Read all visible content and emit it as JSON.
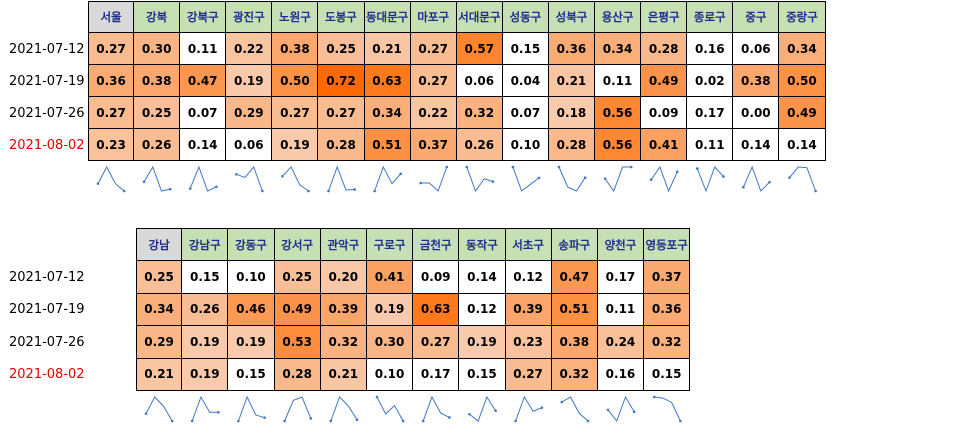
{
  "top_table": {
    "headers": [
      "서울",
      "강북",
      "강북구",
      "광진구",
      "노원구",
      "도봉구",
      "동대문구",
      "마포구",
      "서대문구",
      "성동구",
      "성북구",
      "용산구",
      "은평구",
      "종로구",
      "중구",
      "중랑구"
    ],
    "rows": [
      {
        "date": "2021-07-12",
        "values": [
          "0.27",
          "0.30",
          "0.11",
          "0.22",
          "0.38",
          "0.25",
          "0.21",
          "0.27",
          "0.57",
          "0.15",
          "0.36",
          "0.34",
          "0.28",
          "0.16",
          "0.06",
          "0.34"
        ]
      },
      {
        "date": "2021-07-19",
        "values": [
          "0.36",
          "0.38",
          "0.47",
          "0.19",
          "0.50",
          "0.72",
          "0.63",
          "0.27",
          "0.06",
          "0.04",
          "0.21",
          "0.11",
          "0.49",
          "0.02",
          "0.38",
          "0.50"
        ]
      },
      {
        "date": "2021-07-26",
        "values": [
          "0.27",
          "0.25",
          "0.07",
          "0.29",
          "0.27",
          "0.27",
          "0.34",
          "0.22",
          "0.32",
          "0.07",
          "0.18",
          "0.56",
          "0.09",
          "0.17",
          "0.00",
          "0.49"
        ]
      },
      {
        "date": "2021-08-02",
        "values": [
          "0.23",
          "0.26",
          "0.14",
          "0.06",
          "0.19",
          "0.28",
          "0.51",
          "0.37",
          "0.26",
          "0.10",
          "0.28",
          "0.56",
          "0.41",
          "0.11",
          "0.14",
          "0.14"
        ]
      }
    ]
  },
  "bottom_table": {
    "headers": [
      "강남",
      "강남구",
      "강동구",
      "강서구",
      "관악구",
      "구로구",
      "금천구",
      "동작구",
      "서초구",
      "송파구",
      "양천구",
      "영등포구"
    ],
    "rows": [
      {
        "date": "2021-07-12",
        "values": [
          "0.25",
          "0.15",
          "0.10",
          "0.25",
          "0.20",
          "0.41",
          "0.09",
          "0.14",
          "0.12",
          "0.47",
          "0.17",
          "0.37"
        ]
      },
      {
        "date": "2021-07-19",
        "values": [
          "0.34",
          "0.26",
          "0.46",
          "0.49",
          "0.39",
          "0.19",
          "0.63",
          "0.12",
          "0.39",
          "0.51",
          "0.11",
          "0.36"
        ]
      },
      {
        "date": "2021-07-26",
        "values": [
          "0.29",
          "0.19",
          "0.19",
          "0.53",
          "0.32",
          "0.30",
          "0.27",
          "0.19",
          "0.23",
          "0.38",
          "0.24",
          "0.32"
        ]
      },
      {
        "date": "2021-08-02",
        "values": [
          "0.21",
          "0.19",
          "0.15",
          "0.28",
          "0.21",
          "0.10",
          "0.17",
          "0.15",
          "0.27",
          "0.32",
          "0.16",
          "0.15"
        ]
      }
    ]
  },
  "colors": {
    "header_green": "#c6e0b4",
    "header_gray": "#d9d9d9",
    "header_text": "#1f2d8a",
    "latest_date_text": "#e00000",
    "heat_low": "#f8cbad",
    "heat_high": "#ff6a00",
    "heat_none": "#ffffff",
    "sparkline": "#3f77c4"
  }
}
